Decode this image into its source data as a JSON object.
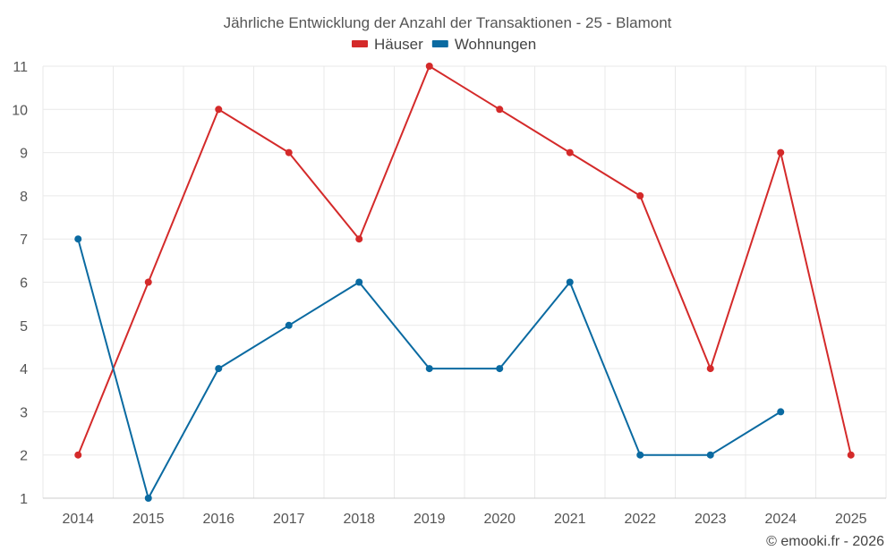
{
  "chart_data": {
    "type": "line",
    "title": "Jährliche Entwicklung der Anzahl der Transaktionen - 25 - Blamont",
    "categories": [
      "2014",
      "2015",
      "2016",
      "2017",
      "2018",
      "2019",
      "2020",
      "2021",
      "2022",
      "2023",
      "2024",
      "2025"
    ],
    "ylim": [
      1,
      11
    ],
    "yticks": [
      "1",
      "2",
      "3",
      "4",
      "5",
      "6",
      "7",
      "8",
      "9",
      "10",
      "11"
    ],
    "grid": true,
    "legend_position": "top-center",
    "series": [
      {
        "name": "Häuser",
        "color": "#d42a2a",
        "values": [
          2,
          6,
          10,
          9,
          7,
          11,
          10,
          9,
          8,
          4,
          9,
          2
        ]
      },
      {
        "name": "Wohnungen",
        "color": "#0a6aa1",
        "values": [
          7,
          1,
          4,
          5,
          6,
          4,
          4,
          6,
          2,
          2,
          3,
          null
        ]
      }
    ]
  },
  "credit": "© emooki.fr - 2026"
}
